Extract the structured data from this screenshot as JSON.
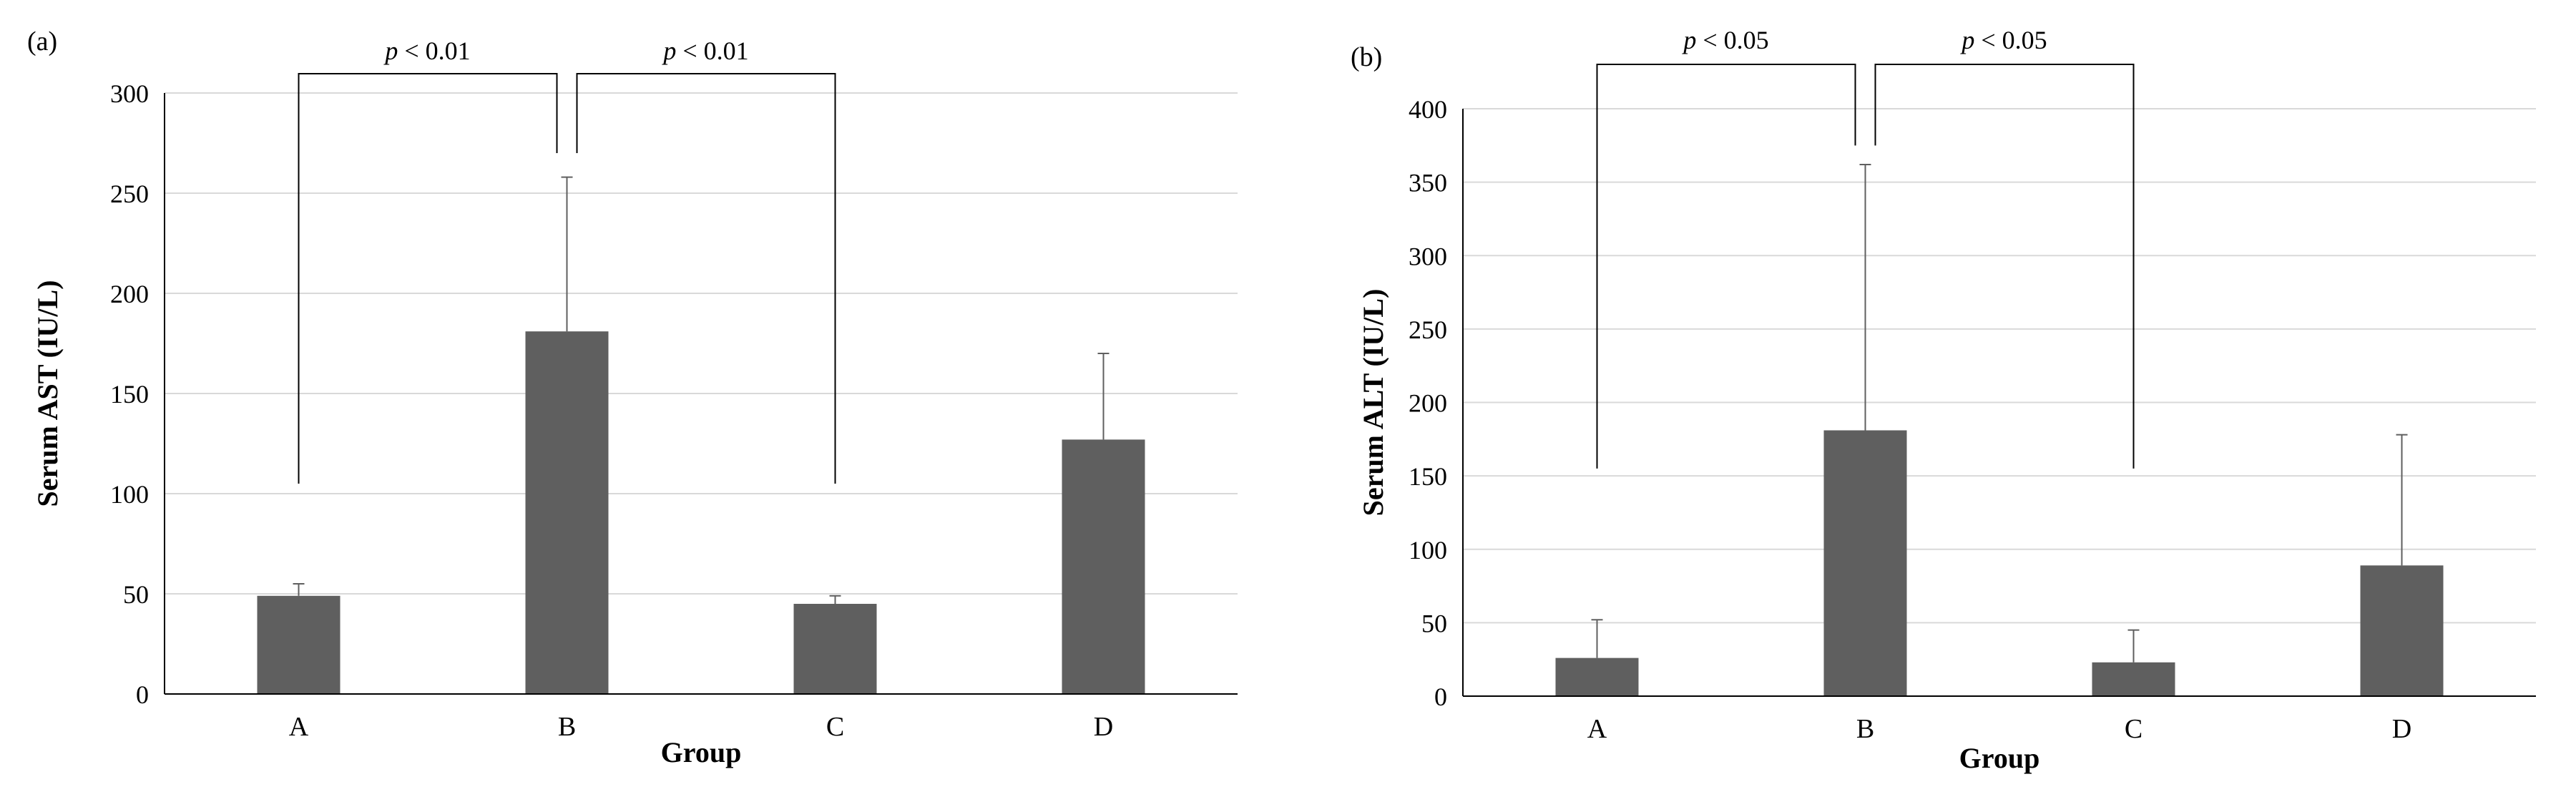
{
  "chart_data": [
    {
      "type": "bar",
      "panel_label": "(a)",
      "categories": [
        "A",
        "B",
        "C",
        "D"
      ],
      "values": [
        49,
        181,
        45,
        127
      ],
      "error_upper": [
        55,
        258,
        49,
        170
      ],
      "xlabel": "Group",
      "ylabel": "Serum AST (IU/L)",
      "ylim": [
        0,
        300
      ],
      "yticks": [
        0,
        50,
        100,
        150,
        200,
        250,
        300
      ],
      "grid": true,
      "significance": [
        {
          "label_pre": "p",
          "label_post": " < 0.01",
          "from": "A",
          "to": "B"
        },
        {
          "label_pre": "p",
          "label_post": " < 0.01",
          "from": "B",
          "to": "C"
        }
      ]
    },
    {
      "type": "bar",
      "panel_label": "(b)",
      "categories": [
        "A",
        "B",
        "C",
        "D"
      ],
      "values": [
        26,
        181,
        23,
        89
      ],
      "error_upper": [
        52,
        362,
        45,
        178
      ],
      "xlabel": "Group",
      "ylabel": "Serum ALT (IU/L)",
      "ylim": [
        0,
        400
      ],
      "yticks": [
        0,
        50,
        100,
        150,
        200,
        250,
        300,
        350,
        400
      ],
      "grid": true,
      "significance": [
        {
          "label_pre": "p",
          "label_post": " < 0.05",
          "from": "A",
          "to": "B"
        },
        {
          "label_pre": "p",
          "label_post": " < 0.05",
          "from": "B",
          "to": "C"
        }
      ]
    }
  ]
}
